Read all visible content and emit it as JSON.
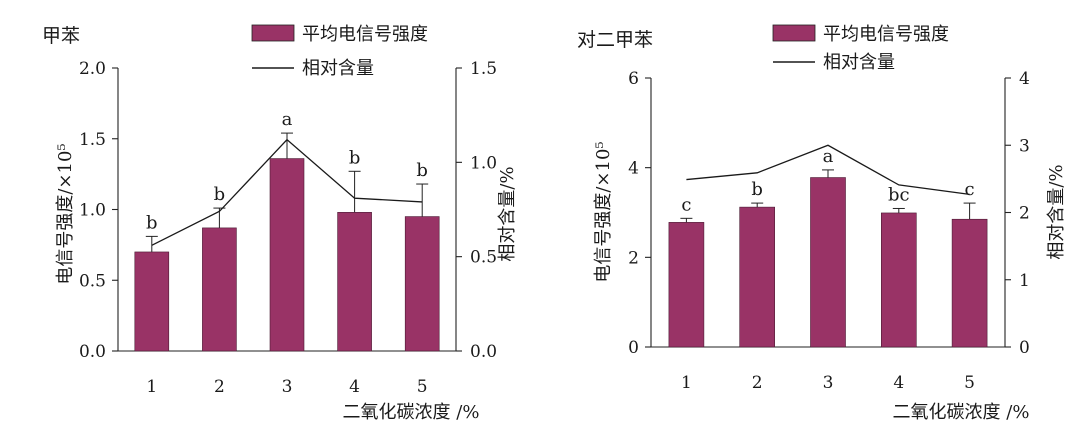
{
  "chart_data": [
    {
      "type": "bar",
      "title": "甲苯",
      "categories": [
        "1",
        "2",
        "3",
        "4",
        "5"
      ],
      "xlabel": "二氧化碳浓度 /%",
      "ylabel": "电信号强度/×10⁵",
      "y2label": "相对含量/%",
      "ylim": [
        0,
        2.0
      ],
      "yticks": [
        "0.0",
        "0.5",
        "1.0",
        "1.5",
        "2.0"
      ],
      "y2lim": [
        0,
        1.5
      ],
      "y2ticks": [
        "0.0",
        "0.5",
        "1.0",
        "1.5"
      ],
      "legend_position": "top-right",
      "series": [
        {
          "name": "平均电信号强度",
          "kind": "bar",
          "axis": "left",
          "values": [
            0.7,
            0.87,
            1.36,
            0.98,
            0.95
          ],
          "errors": [
            0.11,
            0.14,
            0.18,
            0.29,
            0.23
          ],
          "significance": [
            "b",
            "b",
            "a",
            "b",
            "b"
          ]
        },
        {
          "name": "相对含量",
          "kind": "line",
          "axis": "right",
          "values": [
            0.56,
            0.74,
            1.12,
            0.81,
            0.79
          ]
        }
      ],
      "colors": {
        "bar": "#993366",
        "line": "#1a1a1a"
      }
    },
    {
      "type": "bar",
      "title": "对二甲苯",
      "categories": [
        "1",
        "2",
        "3",
        "4",
        "5"
      ],
      "xlabel": "二氧化碳浓度 /%",
      "ylabel": "电信号强度/×10⁵",
      "y2label": "相对含量/%",
      "ylim": [
        0,
        6
      ],
      "yticks": [
        "0",
        "2",
        "4",
        "6"
      ],
      "y2lim": [
        0,
        4
      ],
      "y2ticks": [
        "0",
        "1",
        "2",
        "3",
        "4"
      ],
      "legend_position": "top-right",
      "series": [
        {
          "name": "平均电信号强度",
          "kind": "bar",
          "axis": "left",
          "values": [
            2.78,
            3.12,
            3.78,
            2.99,
            2.85
          ],
          "errors": [
            0.09,
            0.09,
            0.17,
            0.1,
            0.36
          ],
          "significance": [
            "c",
            "b",
            "a",
            "bc",
            "c"
          ]
        },
        {
          "name": "相对含量",
          "kind": "line",
          "axis": "right",
          "values": [
            2.49,
            2.59,
            3.0,
            2.41,
            2.27
          ]
        }
      ],
      "colors": {
        "bar": "#993366",
        "line": "#1a1a1a"
      }
    }
  ]
}
